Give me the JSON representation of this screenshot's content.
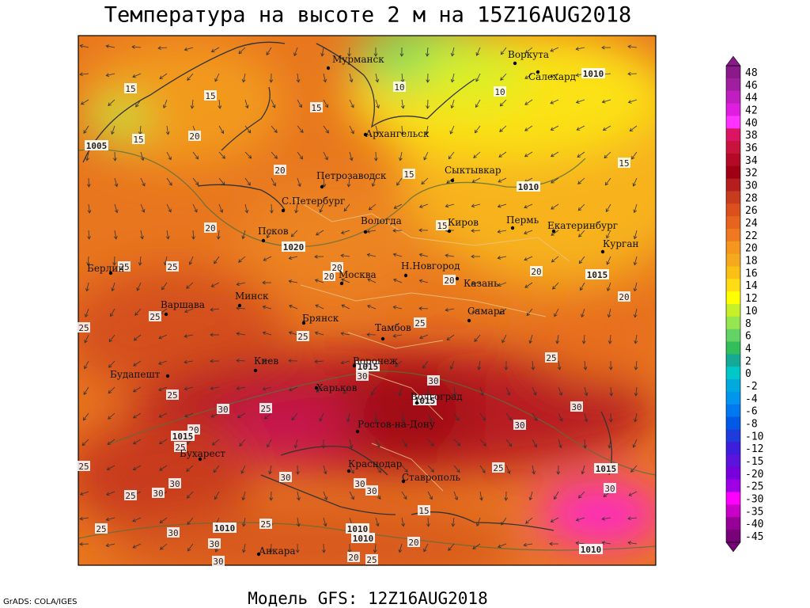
{
  "title": "Температура на высоте 2 м на 15Z16AUG2018",
  "footer": "Модель GFS: 12Z16AUG2018",
  "credit": "GrADS: COLA/IGES",
  "cities": [
    "Мурманск",
    "Воркута",
    "Салехард",
    "Архангельск",
    "Сыктывкар",
    "Петрозаводск",
    "С.Петербург",
    "Вологда",
    "Киров",
    "Пермь",
    "Екатеринбург",
    "Курган",
    "Псков",
    "Берлин",
    "Москва",
    "Н.Новгород",
    "Казань",
    "Минск",
    "Варшава",
    "Брянск",
    "Тамбов",
    "Самара",
    "Киев",
    "Воронеж",
    "Будапешт",
    "Харьков",
    "Волгоград",
    "Ростов-на-Дону",
    "Бухарест",
    "Краснодар",
    "Ставрополь",
    "Анкара"
  ],
  "isotherm_labels": [
    15,
    15,
    15,
    20,
    20,
    15,
    10,
    10,
    15,
    15,
    20,
    25,
    25,
    20,
    20,
    20,
    20,
    20,
    15,
    25,
    25,
    25,
    25,
    25,
    30,
    30,
    25,
    30,
    25,
    30,
    20,
    25,
    25,
    30,
    30,
    25,
    30,
    30,
    30,
    25,
    30,
    30,
    15,
    25,
    25,
    30,
    30,
    20,
    20,
    25,
    30
  ],
  "isobar_labels": [
    1005,
    1010,
    1010,
    1020,
    1015,
    1015,
    1015,
    1015,
    1015,
    1010,
    1010,
    1010,
    1010
  ],
  "colorbar": {
    "levels": [
      48,
      46,
      44,
      42,
      40,
      38,
      36,
      34,
      32,
      30,
      28,
      26,
      24,
      22,
      20,
      18,
      16,
      14,
      12,
      10,
      8,
      6,
      4,
      2,
      0,
      -2,
      -4,
      -6,
      -8,
      -10,
      -12,
      -15,
      -20,
      -25,
      -30,
      -35,
      -40,
      -45
    ],
    "colors": [
      "#8a1a8a",
      "#a01ea0",
      "#c01ec0",
      "#e01ee0",
      "#ff32ff",
      "#dc1464",
      "#c8143c",
      "#b40a28",
      "#a00014",
      "#b41e1e",
      "#c83c1e",
      "#dc501e",
      "#e6641e",
      "#f07820",
      "#f5961e",
      "#f5aa1e",
      "#fac014",
      "#ffdc14",
      "#ffff00",
      "#c8f028",
      "#96e650",
      "#64d264",
      "#32be5a",
      "#14aa96",
      "#00c8c8",
      "#00aadc",
      "#0096f0",
      "#0078f0",
      "#005ae6",
      "#1e3cdc",
      "#3c1edc",
      "#5a14dc",
      "#7800dc",
      "#a000e6",
      "#ff00ff",
      "#c800c8",
      "#960096",
      "#780078"
    ]
  }
}
